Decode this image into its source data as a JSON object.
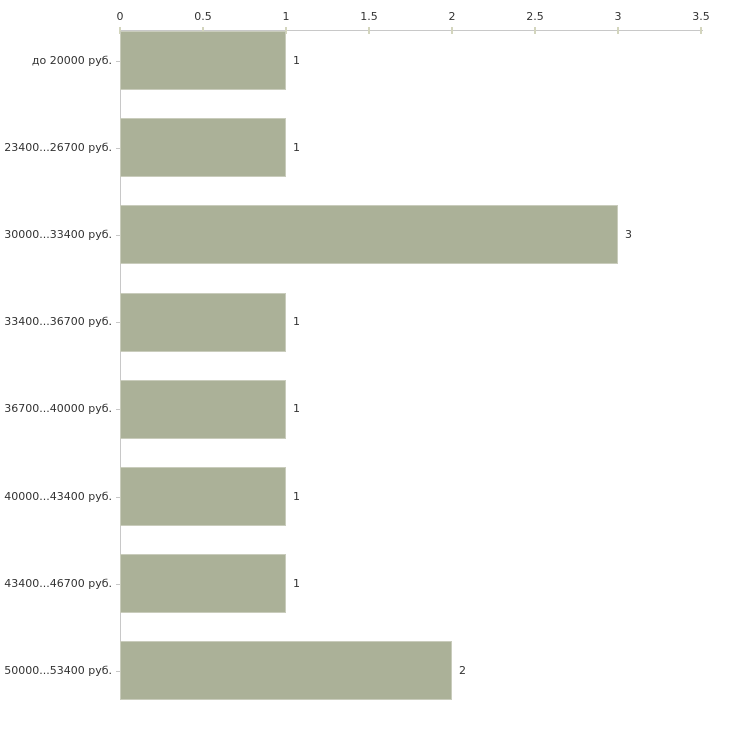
{
  "chart_data": {
    "type": "bar",
    "orientation": "horizontal",
    "title": "",
    "xlabel": "",
    "ylabel": "",
    "categories": [
      "до 20000 руб.",
      "23400...26700 руб.",
      "30000...33400 руб.",
      "33400...36700 руб.",
      "36700...40000 руб.",
      "40000...43400 руб.",
      "43400...46700 руб.",
      "50000...53400 руб."
    ],
    "values": [
      1,
      1,
      3,
      1,
      1,
      1,
      1,
      2
    ],
    "value_labels": [
      "1",
      "1",
      "3",
      "1",
      "1",
      "1",
      "1",
      "2"
    ],
    "xlim": [
      0,
      3.5
    ],
    "x_ticks": [
      0,
      0.5,
      1,
      1.5,
      2,
      2.5,
      3,
      3.5
    ],
    "x_tick_labels": [
      "0",
      "0.5",
      "1",
      "1.5",
      "2",
      "2.5",
      "3",
      "3.5"
    ],
    "grid": false,
    "legend": false,
    "colors": {
      "bar_fill": "#abb198",
      "bar_border": "#c9ccbc",
      "axis_line": "#c8c8c8",
      "tick_mark": "#d3d5bd",
      "text": "#333333",
      "background": "#ffffff"
    }
  }
}
